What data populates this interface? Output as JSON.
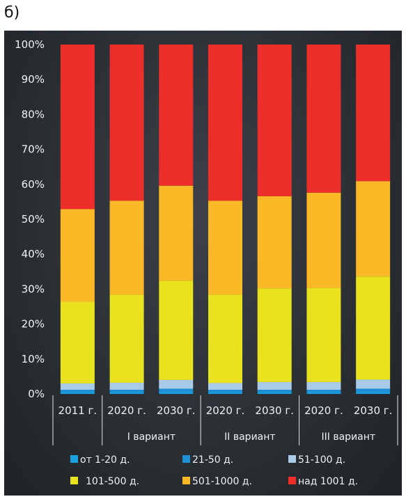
{
  "corner_label": "б)",
  "chart_data": {
    "type": "bar",
    "stacked": true,
    "percent": true,
    "categories": [
      "2011 г.",
      "2020 г.",
      "2030 г.",
      "2020 г.",
      "2030 г.",
      "2020 г.",
      "2030 г."
    ],
    "groups": [
      {
        "label": "",
        "span": [
          0,
          0
        ]
      },
      {
        "label": "I вариант",
        "span": [
          1,
          2
        ]
      },
      {
        "label": "II вариант",
        "span": [
          3,
          4
        ]
      },
      {
        "label": "III вариант",
        "span": [
          5,
          6
        ]
      }
    ],
    "ylim": [
      0,
      100
    ],
    "yticks": [
      "0%",
      "10%",
      "20%",
      "30%",
      "40%",
      "50%",
      "60%",
      "70%",
      "80%",
      "90%",
      "100%"
    ],
    "series": [
      {
        "name": "от 1-20 д.",
        "color": "#1a9fe0",
        "values": [
          0.4,
          0.4,
          0.5,
          0.4,
          0.4,
          0.4,
          0.5
        ]
      },
      {
        "name": "21-50 д.",
        "color": "#1f8fd6",
        "values": [
          0.8,
          0.8,
          1.0,
          0.8,
          0.8,
          0.8,
          1.0
        ]
      },
      {
        "name": "51-100 д.",
        "color": "#a9cbe8",
        "values": [
          1.8,
          2.0,
          2.5,
          1.9,
          2.2,
          2.2,
          2.6
        ]
      },
      {
        "name": "101-500 д.",
        "color": "#e8e21f",
        "values": [
          23.4,
          25.2,
          28.4,
          25.3,
          26.8,
          26.9,
          29.5
        ]
      },
      {
        "name": "501-1000 д.",
        "color": "#fbb827",
        "values": [
          26.5,
          26.9,
          27.2,
          26.9,
          26.4,
          27.3,
          27.3
        ]
      },
      {
        "name": "над 1001 д.",
        "color": "#ee2e2b",
        "values": [
          47.1,
          44.7,
          40.4,
          44.7,
          43.4,
          42.4,
          39.1
        ]
      }
    ],
    "legend": "bottom",
    "grid": false
  }
}
